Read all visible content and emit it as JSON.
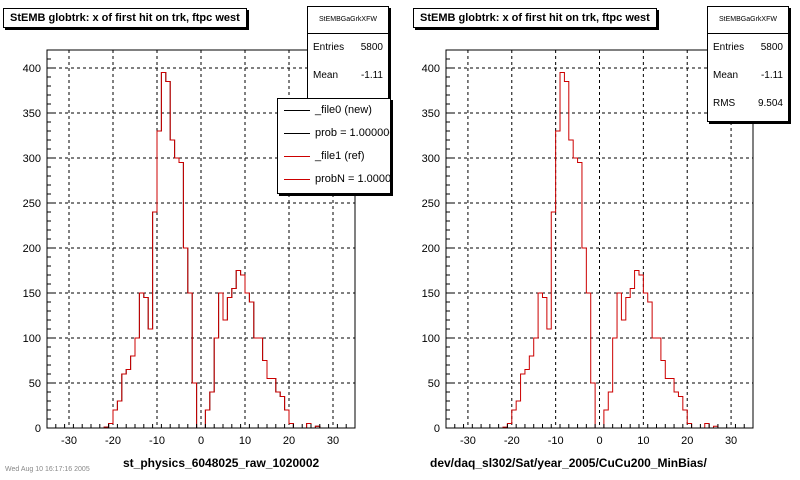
{
  "chart_data": [
    {
      "type": "histogram",
      "title": "StEMB globtrk: x of first hit on trk, ftpc west",
      "xlabel": "st_physics_6048025_raw_1020002",
      "xlim": [
        -35,
        35
      ],
      "ylim": [
        0,
        420
      ],
      "xticks": [
        -30,
        -20,
        -10,
        0,
        10,
        20,
        30
      ],
      "yticks": [
        0,
        50,
        100,
        150,
        200,
        250,
        300,
        350,
        400
      ],
      "grid": true,
      "bin_edges": [
        -35,
        35
      ],
      "bin_width": 1,
      "series": [
        {
          "name": "_file0 (new)",
          "color": "#000000",
          "values": [
            0,
            0,
            0,
            0,
            0,
            0,
            0,
            0,
            0,
            0,
            0,
            0,
            0,
            1,
            5,
            20,
            30,
            60,
            65,
            80,
            100,
            150,
            145,
            110,
            240,
            330,
            395,
            385,
            320,
            300,
            295,
            200,
            150,
            50,
            0,
            0,
            20,
            40,
            100,
            150,
            120,
            145,
            155,
            175,
            170,
            150,
            140,
            100,
            100,
            75,
            55,
            55,
            40,
            35,
            20,
            5,
            0,
            0,
            0,
            5,
            0,
            2,
            0,
            0,
            0,
            0,
            0,
            0,
            0,
            0
          ]
        },
        {
          "name": "_file1 (ref)",
          "color": "#cc0000",
          "values": [
            0,
            0,
            0,
            0,
            0,
            0,
            0,
            0,
            0,
            0,
            0,
            0,
            0,
            1,
            5,
            20,
            30,
            60,
            65,
            80,
            100,
            150,
            145,
            110,
            240,
            330,
            395,
            385,
            320,
            300,
            295,
            200,
            150,
            50,
            0,
            0,
            20,
            40,
            100,
            150,
            120,
            145,
            155,
            175,
            170,
            150,
            140,
            100,
            100,
            75,
            55,
            55,
            40,
            35,
            20,
            5,
            0,
            0,
            0,
            5,
            0,
            2,
            0,
            0,
            0,
            0,
            0,
            0,
            0,
            0
          ]
        }
      ],
      "stats": {
        "name": "StEMBGaGrkXFW",
        "entries_label": "Entries",
        "entries": "5800",
        "mean_label": "Mean",
        "mean": "-1.11"
      },
      "legend": {
        "placement": "top-right",
        "entries": [
          {
            "text": "_file0 (new)",
            "color": "#000000"
          },
          {
            "text": "prob = 1.000000",
            "color": "#000000"
          },
          {
            "text": "_file1 (ref)",
            "color": "#cc0000"
          },
          {
            "text": "probN = 1.000000",
            "color": "#cc0000"
          }
        ]
      }
    },
    {
      "type": "histogram",
      "title": "StEMB globtrk: x of first hit on trk, ftpc west",
      "xlabel": "dev/daq_sl302/Sat/year_2005/CuCu200_MinBias/",
      "xlim": [
        -35,
        35
      ],
      "ylim": [
        0,
        420
      ],
      "xticks": [
        -30,
        -20,
        -10,
        0,
        10,
        20,
        30
      ],
      "yticks": [
        0,
        50,
        100,
        150,
        200,
        250,
        300,
        350,
        400
      ],
      "grid": true,
      "bin_edges": [
        -35,
        35
      ],
      "bin_width": 1,
      "series": [
        {
          "name": "",
          "color": "#cc0000",
          "values": [
            0,
            0,
            0,
            0,
            0,
            0,
            0,
            0,
            0,
            0,
            0,
            0,
            0,
            1,
            5,
            20,
            30,
            60,
            65,
            80,
            100,
            150,
            145,
            110,
            240,
            330,
            395,
            385,
            320,
            300,
            295,
            200,
            150,
            50,
            0,
            0,
            20,
            40,
            100,
            150,
            120,
            145,
            155,
            175,
            170,
            150,
            140,
            100,
            100,
            75,
            55,
            55,
            40,
            35,
            20,
            5,
            0,
            0,
            0,
            5,
            0,
            2,
            0,
            0,
            0,
            0,
            0,
            0,
            0,
            0
          ]
        }
      ],
      "stats": {
        "name": "StEMBGaGrkXFW",
        "entries_label": "Entries",
        "entries": "5800",
        "mean_label": "Mean",
        "mean": "-1.11",
        "rms_label": "RMS",
        "rms": "9.504"
      }
    }
  ],
  "footer": "Wed Aug 10 16:17:16 2005"
}
